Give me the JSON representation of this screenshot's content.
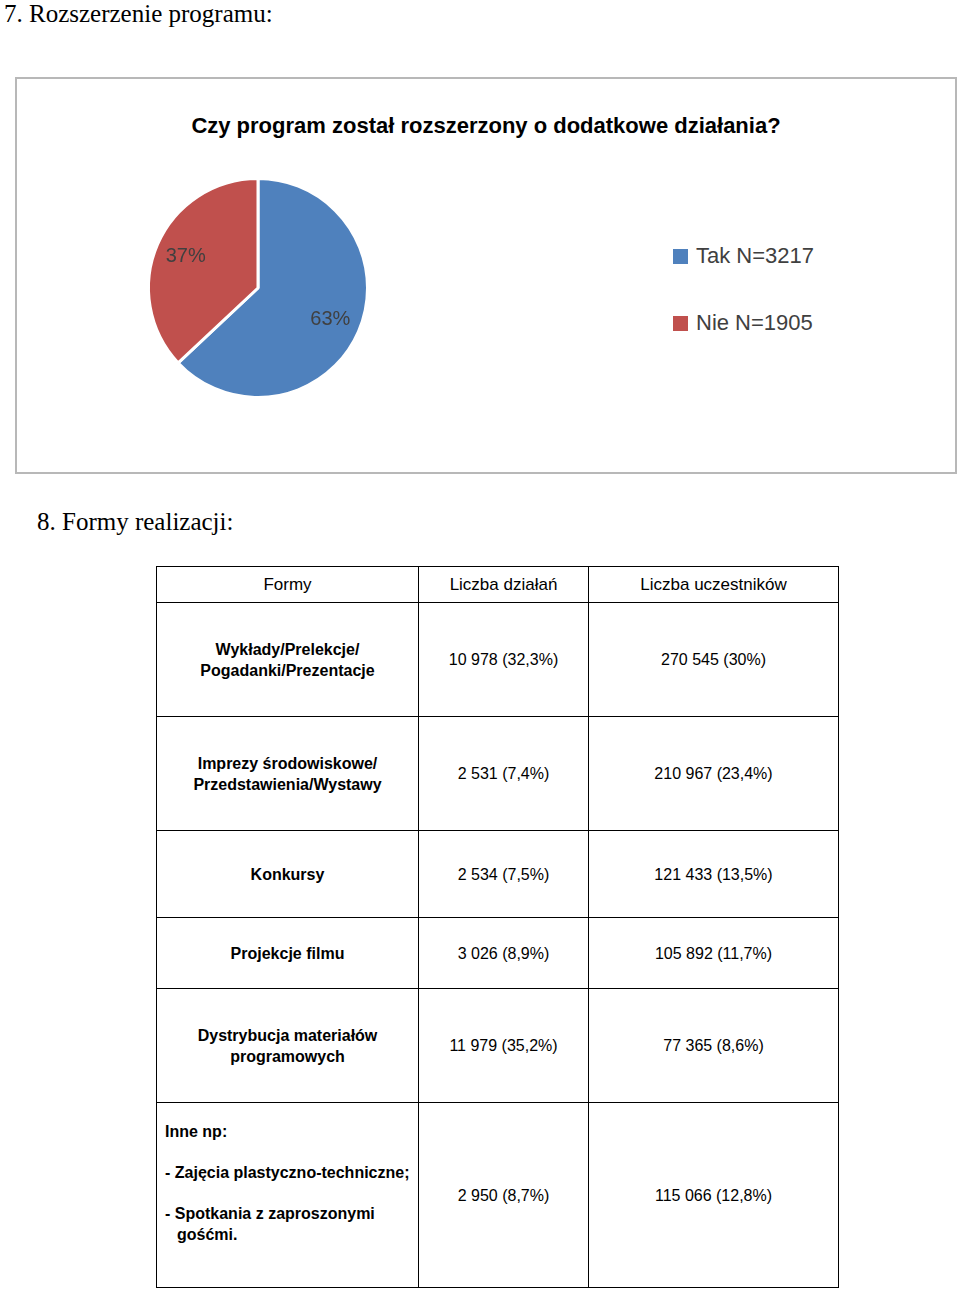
{
  "heading1": "7. Rozszerzenie programu:",
  "chart_data": {
    "type": "pie",
    "title": "Czy program został rozszerzony o dodatkowe działania?",
    "categories": [
      "Tak N=3217",
      "Nie N=1905"
    ],
    "values": [
      63,
      37
    ],
    "value_labels": [
      "63%",
      "37%"
    ],
    "colors": [
      "#4f81bd",
      "#c0504d"
    ],
    "data_labels": true,
    "legend": "right"
  },
  "heading2": "8. Formy realizacji:",
  "table": {
    "header": [
      "Formy",
      "Liczba działań",
      "Liczba uczestników"
    ],
    "rows": [
      [
        "Wykłady/Prelekcje/ Pogadanki/Prezentacje",
        "10 978 (32,3%)",
        "270 545 (30%)"
      ],
      [
        "Imprezy środowiskowe/ Przedstawienia/Wystawy",
        "2 531 (7,4%)",
        "210 967 (23,4%)"
      ],
      [
        "Konkursy",
        "2 534 (7,5%)",
        "121 433 (13,5%)"
      ],
      [
        "Projekcje filmu",
        "3 026 (8,9%)",
        "105 892 (11,7%)"
      ],
      [
        "Dystrybucja materiałów programowych",
        "11 979 (35,2%)",
        "77 365 (8,6%)"
      ],
      [
        {
          "title": "Inne np:",
          "items": [
            "- Zajęcia plastyczno-techniczne;",
            "- Spotkania z zaproszonymi gośćmi."
          ]
        },
        "2 950 (8,7%)",
        "115 066 (12,8%)"
      ]
    ]
  }
}
